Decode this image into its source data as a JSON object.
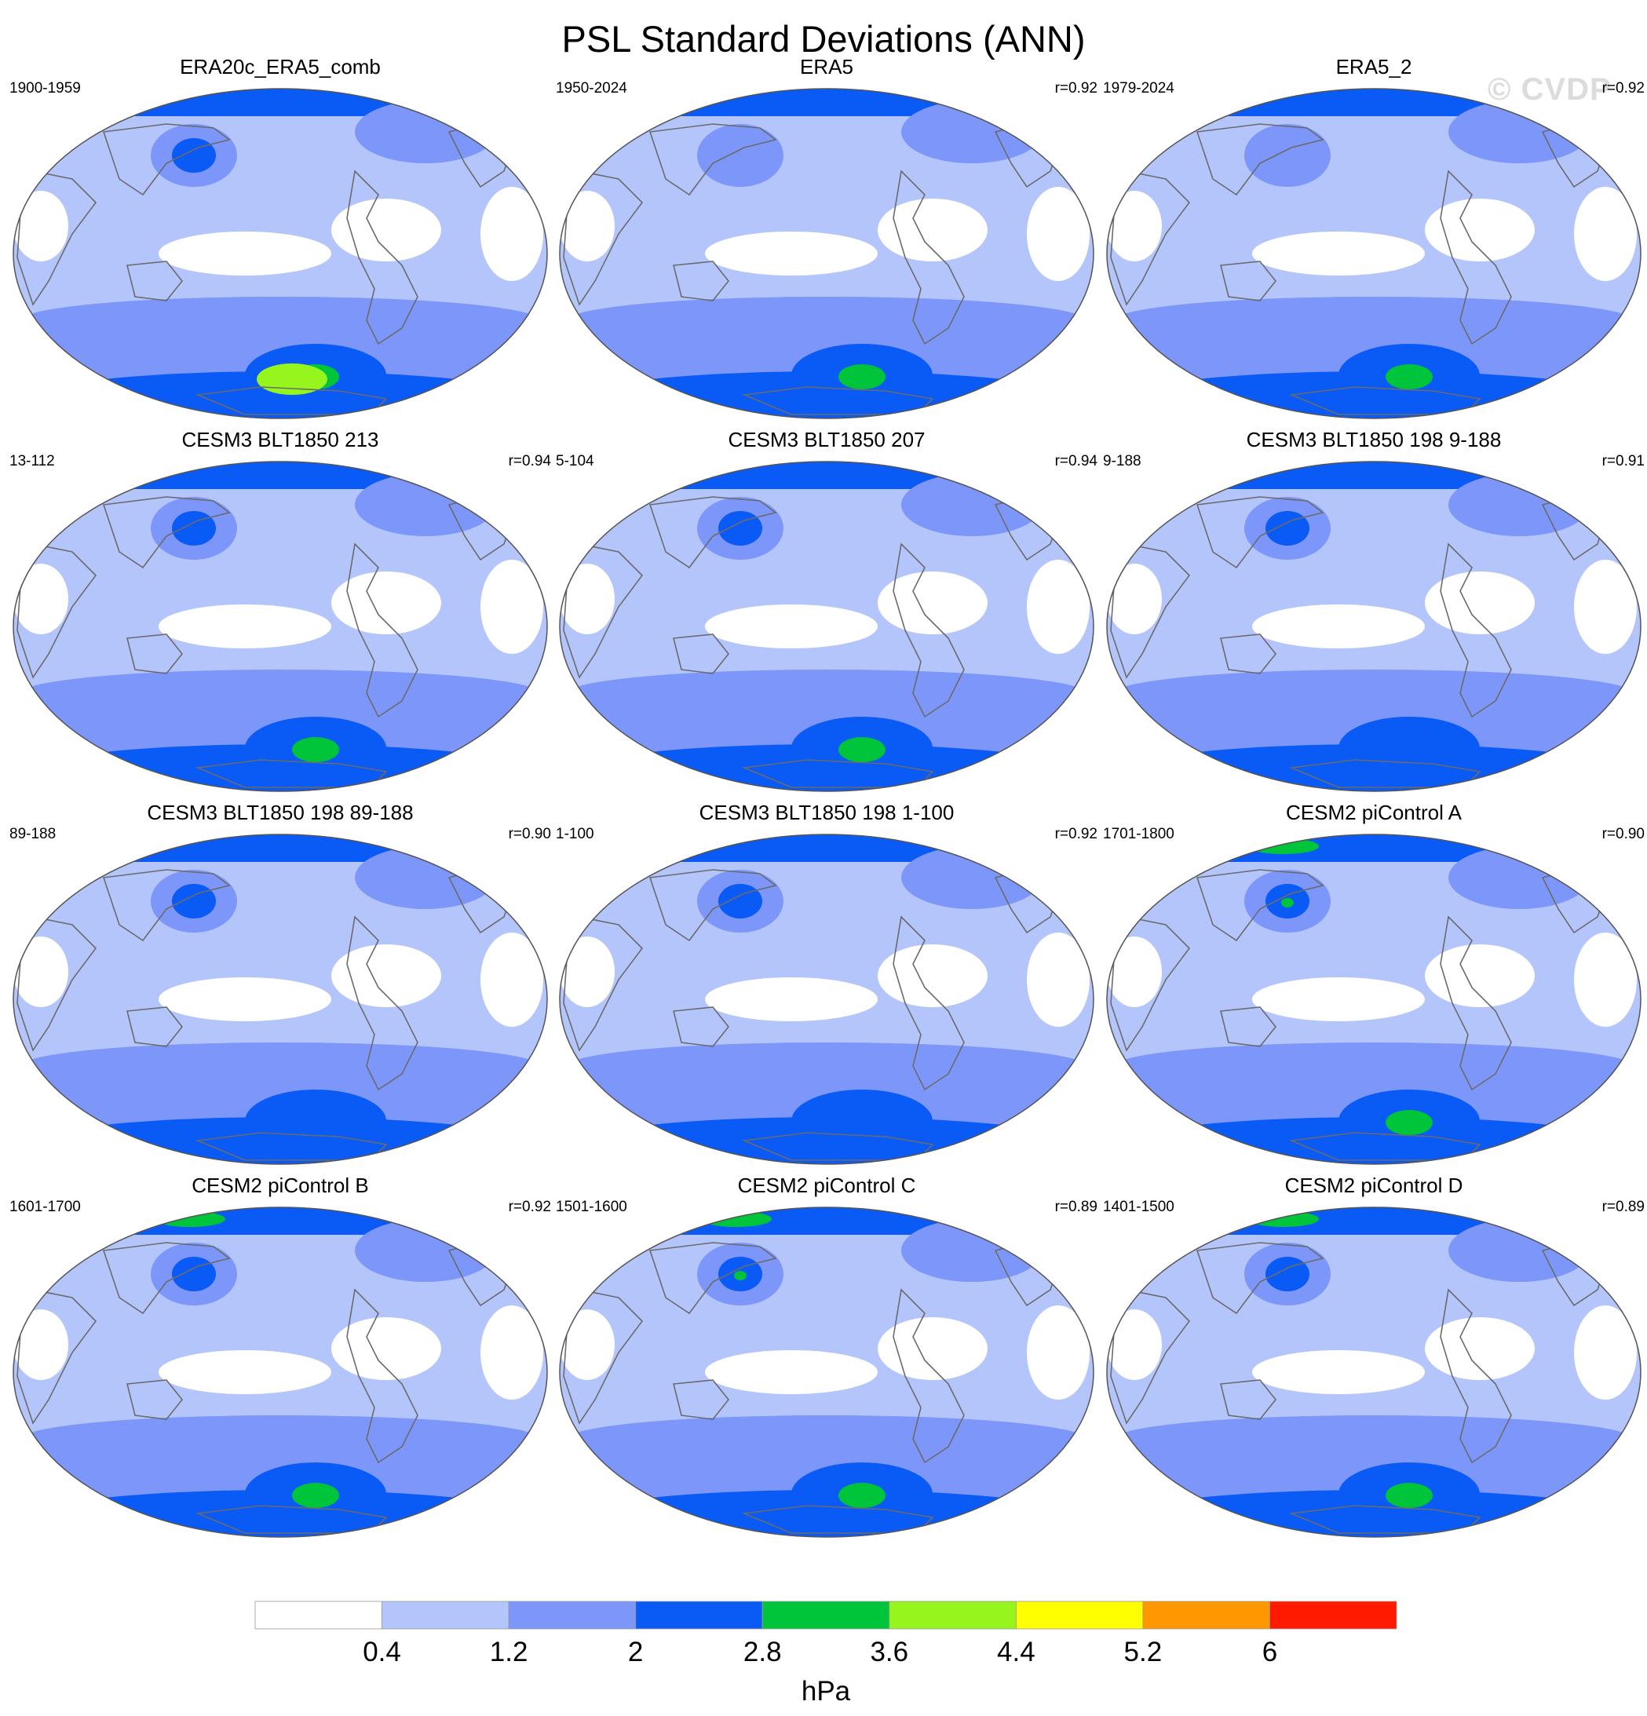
{
  "title": "PSL Standard Deviations (ANN)",
  "watermark": "© CVDP",
  "colors": {
    "levels": [
      "#ffffff",
      "#b4c5fc",
      "#7d96f9",
      "#0a5af5",
      "#00c43a",
      "#96f51d",
      "#ffff00",
      "#ff9800",
      "#ff1a00"
    ],
    "coast": "#6b6b6b",
    "outline": "#555555"
  },
  "panels": [
    {
      "title": "ERA20c_ERA5_comb",
      "period": "1900-1959",
      "r": "",
      "north_green": false,
      "aleutian": 3,
      "south_max": 5
    },
    {
      "title": "ERA5",
      "period": "1950-2024",
      "r": "r=0.92",
      "north_green": false,
      "aleutian": 2,
      "south_max": 4
    },
    {
      "title": "ERA5_2",
      "period": "1979-2024",
      "r": "r=0.92",
      "north_green": false,
      "aleutian": 2,
      "south_max": 4
    },
    {
      "title": "CESM3 BLT1850 213",
      "period": "13-112",
      "r": "r=0.94",
      "north_green": false,
      "aleutian": 3,
      "south_max": 4
    },
    {
      "title": "CESM3 BLT1850 207",
      "period": "5-104",
      "r": "r=0.94",
      "north_green": false,
      "aleutian": 3,
      "south_max": 4
    },
    {
      "title": "CESM3 BLT1850 198 9-188",
      "period": "9-188",
      "r": "r=0.91",
      "north_green": false,
      "aleutian": 3,
      "south_max": 3
    },
    {
      "title": "CESM3 BLT1850 198 89-188",
      "period": "89-188",
      "r": "r=0.90",
      "north_green": false,
      "aleutian": 3,
      "south_max": 3
    },
    {
      "title": "CESM3 BLT1850 198 1-100",
      "period": "1-100",
      "r": "r=0.92",
      "north_green": false,
      "aleutian": 3,
      "south_max": 3
    },
    {
      "title": "CESM2 piControl A",
      "period": "1701-1800",
      "r": "r=0.90",
      "north_green": true,
      "aleutian": 4,
      "south_max": 4
    },
    {
      "title": "CESM2 piControl B",
      "period": "1601-1700",
      "r": "r=0.92",
      "north_green": true,
      "aleutian": 3,
      "south_max": 4
    },
    {
      "title": "CESM2 piControl C",
      "period": "1501-1600",
      "r": "r=0.89",
      "north_green": true,
      "aleutian": 4,
      "south_max": 4
    },
    {
      "title": "CESM2 piControl D",
      "period": "1401-1500",
      "r": "r=0.89",
      "north_green": true,
      "aleutian": 3,
      "south_max": 4
    }
  ],
  "colorbar": {
    "labels": [
      "0.4",
      "1.2",
      "2",
      "2.8",
      "3.6",
      "4.4",
      "5.2",
      "6"
    ],
    "units": "hPa"
  }
}
